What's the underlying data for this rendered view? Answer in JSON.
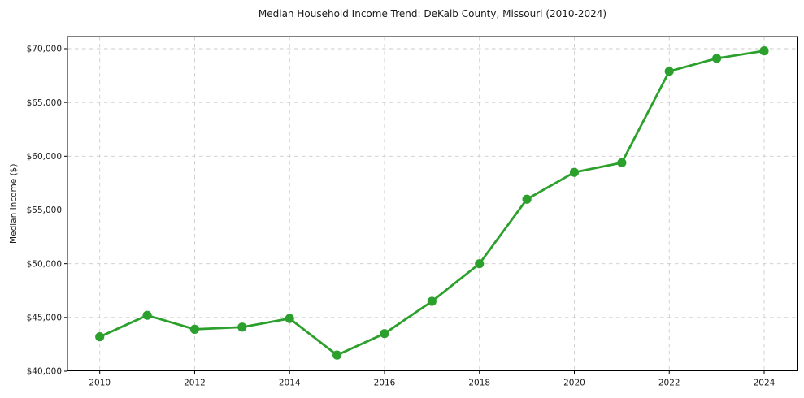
{
  "page": {
    "background_color": "#ffffff"
  },
  "chart_data": {
    "type": "line",
    "title": "Median Household Income Trend: DeKalb County, Missouri (2010-2024)",
    "xlabel": "",
    "ylabel": "Median Income ($)",
    "x": [
      2010,
      2011,
      2012,
      2013,
      2014,
      2015,
      2016,
      2017,
      2018,
      2019,
      2020,
      2021,
      2022,
      2023,
      2024
    ],
    "values": [
      43200,
      45200,
      43900,
      44100,
      44900,
      41500,
      43500,
      46500,
      50000,
      56000,
      58500,
      59400,
      67900,
      69100,
      69800
    ],
    "ylim": [
      40000,
      71100
    ],
    "yticks": [
      40000,
      45000,
      50000,
      55000,
      60000,
      65000,
      70000
    ],
    "ytick_labels": [
      "$40,000",
      "$45,000",
      "$50,000",
      "$55,000",
      "$60,000",
      "$65,000",
      "$70,000"
    ],
    "xticks": [
      2010,
      2012,
      2014,
      2016,
      2018,
      2020,
      2022,
      2024
    ],
    "xtick_labels": [
      "2010",
      "2012",
      "2014",
      "2016",
      "2018",
      "2020",
      "2022",
      "2024"
    ],
    "grid": true,
    "legend": false,
    "line_color": "#2ca02c",
    "marker": "circle",
    "marker_color": "#2ca02c",
    "grid_color": "#cbcbcb",
    "axis_color": "#000000",
    "text_color": "#1a1a1a"
  }
}
